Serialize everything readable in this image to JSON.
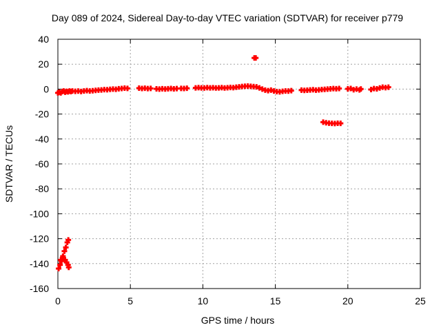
{
  "chart_data": {
    "type": "scatter",
    "title": "Day 089 of 2024, Sidereal Day-to-day VTEC variation (SDTVAR) for receiver p779",
    "xlabel": "GPS time / hours",
    "ylabel": "SDTVAR / TECUs",
    "xlim": [
      0,
      25
    ],
    "ylim": [
      -160,
      40
    ],
    "xticks": [
      0,
      5,
      10,
      15,
      20,
      25
    ],
    "yticks": [
      40,
      20,
      0,
      -20,
      -40,
      -60,
      -80,
      -100,
      -120,
      -140,
      -160
    ],
    "grid": true,
    "marker": "plus",
    "color": "#ff0000",
    "series": [
      {
        "name": "SDTVAR",
        "points": [
          [
            0.05,
            -144
          ],
          [
            0.15,
            -141
          ],
          [
            0.25,
            -138
          ],
          [
            0.35,
            -134
          ],
          [
            0.45,
            -130
          ],
          [
            0.55,
            -127
          ],
          [
            0.65,
            -123
          ],
          [
            0.72,
            -121
          ],
          [
            0.2,
            -137
          ],
          [
            0.35,
            -135
          ],
          [
            0.5,
            -137
          ],
          [
            0.6,
            -139
          ],
          [
            0.7,
            -141
          ],
          [
            0.75,
            -143
          ],
          [
            0.0,
            -3
          ],
          [
            0.1,
            -2.5
          ],
          [
            0.2,
            -3
          ],
          [
            0.3,
            -2
          ],
          [
            0.4,
            -1.5
          ],
          [
            0.5,
            -2.5
          ],
          [
            0.6,
            -1.8
          ],
          [
            0.7,
            -2.2
          ],
          [
            0.8,
            -1.5
          ],
          [
            0.9,
            -2
          ],
          [
            1.0,
            -1.5
          ],
          [
            1.2,
            -1.8
          ],
          [
            1.4,
            -1.6
          ],
          [
            1.6,
            -1.9
          ],
          [
            1.8,
            -1.5
          ],
          [
            2.0,
            -1.2
          ],
          [
            2.2,
            -1.5
          ],
          [
            2.4,
            -1.3
          ],
          [
            2.6,
            -1.0
          ],
          [
            2.8,
            -0.8
          ],
          [
            3.0,
            -0.7
          ],
          [
            3.2,
            -0.4
          ],
          [
            3.4,
            -0.5
          ],
          [
            3.6,
            -0.2
          ],
          [
            3.8,
            0.0
          ],
          [
            4.0,
            -0.1
          ],
          [
            4.2,
            0.3
          ],
          [
            4.4,
            0.5
          ],
          [
            4.6,
            0.8
          ],
          [
            4.8,
            0.6
          ],
          [
            5.6,
            0.8
          ],
          [
            5.8,
            0.5
          ],
          [
            6.0,
            0.7
          ],
          [
            6.2,
            0.4
          ],
          [
            6.4,
            0.6
          ],
          [
            6.8,
            0.2
          ],
          [
            7.0,
            0.0
          ],
          [
            7.2,
            0.3
          ],
          [
            7.4,
            0.1
          ],
          [
            7.6,
            0.3
          ],
          [
            7.8,
            0.5
          ],
          [
            8.0,
            0.2
          ],
          [
            8.2,
            0.4
          ],
          [
            8.5,
            0.6
          ],
          [
            8.7,
            0.5
          ],
          [
            8.9,
            0.7
          ],
          [
            9.5,
            1.0
          ],
          [
            9.7,
            1.2
          ],
          [
            9.9,
            1.0
          ],
          [
            10.1,
            0.9
          ],
          [
            10.3,
            1.2
          ],
          [
            10.5,
            1.0
          ],
          [
            10.7,
            1.1
          ],
          [
            10.9,
            0.9
          ],
          [
            11.1,
            1.0
          ],
          [
            11.3,
            1.2
          ],
          [
            11.5,
            0.9
          ],
          [
            11.7,
            1.1
          ],
          [
            11.9,
            1.3
          ],
          [
            12.1,
            1.2
          ],
          [
            12.3,
            1.5
          ],
          [
            12.5,
            1.8
          ],
          [
            12.7,
            2.1
          ],
          [
            12.9,
            2.3
          ],
          [
            13.1,
            2.4
          ],
          [
            13.3,
            2.2
          ],
          [
            13.5,
            2.0
          ],
          [
            13.7,
            1.8
          ],
          [
            13.9,
            1.0
          ],
          [
            14.1,
            0.0
          ],
          [
            14.3,
            -0.8
          ],
          [
            14.5,
            -1.2
          ],
          [
            14.7,
            -0.8
          ],
          [
            14.9,
            -1.5
          ],
          [
            15.1,
            -2.0
          ],
          [
            15.3,
            -2.2
          ],
          [
            15.5,
            -1.8
          ],
          [
            15.7,
            -1.5
          ],
          [
            15.9,
            -1.6
          ],
          [
            16.1,
            -1.2
          ],
          [
            16.8,
            -0.8
          ],
          [
            17.0,
            -1.0
          ],
          [
            17.2,
            -0.9
          ],
          [
            17.4,
            -0.7
          ],
          [
            17.6,
            -0.5
          ],
          [
            17.8,
            -0.8
          ],
          [
            18.0,
            -0.6
          ],
          [
            18.2,
            -0.3
          ],
          [
            18.4,
            -0.2
          ],
          [
            18.6,
            0.0
          ],
          [
            18.8,
            0.2
          ],
          [
            19.0,
            0.4
          ],
          [
            19.2,
            0.3
          ],
          [
            19.4,
            0.5
          ],
          [
            20.0,
            0.2
          ],
          [
            20.2,
            0.5
          ],
          [
            20.4,
            -0.5
          ],
          [
            20.6,
            0.0
          ],
          [
            20.8,
            -0.6
          ],
          [
            20.9,
            0.1
          ],
          [
            21.6,
            -0.3
          ],
          [
            21.8,
            0.4
          ],
          [
            22.0,
            0.2
          ],
          [
            22.2,
            0.9
          ],
          [
            22.4,
            1.5
          ],
          [
            22.6,
            1.2
          ],
          [
            22.8,
            1.5
          ],
          [
            13.55,
            25
          ],
          [
            13.65,
            25
          ],
          [
            18.3,
            -26.5
          ],
          [
            18.5,
            -27.0
          ],
          [
            18.7,
            -27.3
          ],
          [
            18.9,
            -27.5
          ],
          [
            19.1,
            -27.6
          ],
          [
            19.3,
            -27.4
          ],
          [
            19.5,
            -27.5
          ]
        ]
      }
    ]
  }
}
